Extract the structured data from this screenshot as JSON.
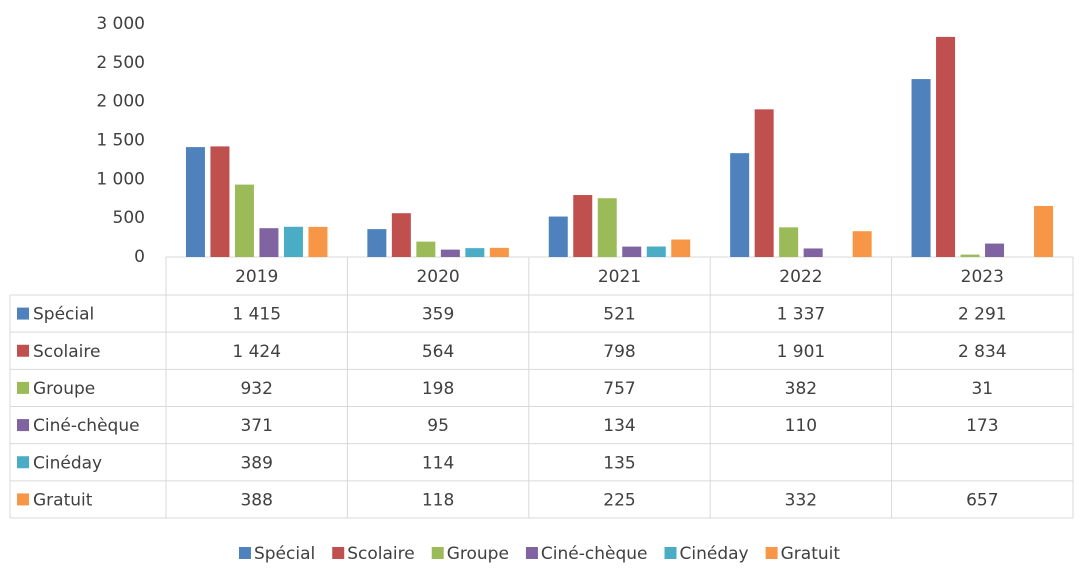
{
  "chart_data": {
    "type": "bar",
    "categories": [
      "2019",
      "2020",
      "2021",
      "2022",
      "2023"
    ],
    "series": [
      {
        "name": "Spécial",
        "color": "#4f81bd",
        "values": [
          1415,
          359,
          521,
          1337,
          2291
        ],
        "value_labels": [
          "1 415",
          "359",
          "521",
          "1 337",
          "2 291"
        ]
      },
      {
        "name": "Scolaire",
        "color": "#c0504d",
        "values": [
          1424,
          564,
          798,
          1901,
          2834
        ],
        "value_labels": [
          "1 424",
          "564",
          "798",
          "1 901",
          "2 834"
        ]
      },
      {
        "name": "Groupe",
        "color": "#9bbb59",
        "values": [
          932,
          198,
          757,
          382,
          31
        ],
        "value_labels": [
          "932",
          "198",
          "757",
          "382",
          "31"
        ]
      },
      {
        "name": "Ciné-chèque",
        "color": "#8064a2",
        "values": [
          371,
          95,
          134,
          110,
          173
        ],
        "value_labels": [
          "371",
          "95",
          "134",
          "110",
          "173"
        ]
      },
      {
        "name": "Cinéday",
        "color": "#4bacc6",
        "values": [
          389,
          114,
          135,
          null,
          null
        ],
        "value_labels": [
          "389",
          "114",
          "135",
          null,
          null
        ]
      },
      {
        "name": "Gratuit",
        "color": "#f79646",
        "values": [
          388,
          118,
          225,
          332,
          657
        ],
        "value_labels": [
          "388",
          "118",
          "225",
          "332",
          "657"
        ]
      }
    ],
    "ylim": [
      0,
      3000
    ],
    "yticks": [
      0,
      500,
      {
        "value": 1000,
        "label": "1 000"
      },
      {
        "value": 1500,
        "label": "1 500"
      },
      {
        "value": 2000,
        "label": "2 000"
      },
      {
        "value": 2500,
        "label": "2 500"
      },
      {
        "value": 3000,
        "label": "3 000"
      }
    ],
    "grid": false,
    "legend": "bottom"
  }
}
